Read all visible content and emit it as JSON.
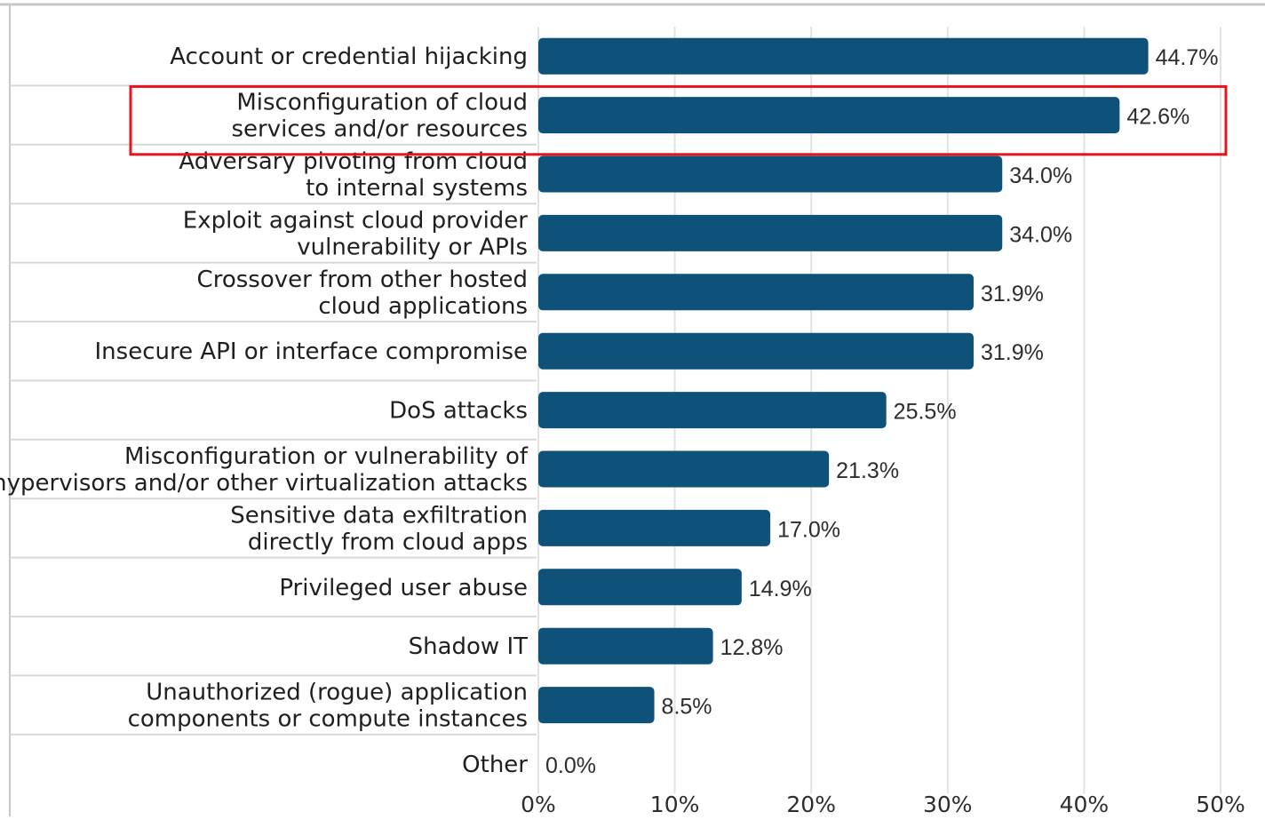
{
  "chart_data": {
    "type": "bar",
    "orientation": "horizontal",
    "categories": [
      [
        "Account or credential hijacking"
      ],
      [
        "Misconfiguration of cloud",
        "services and/or resources"
      ],
      [
        "Adversary pivoting from cloud",
        "to internal systems"
      ],
      [
        "Exploit against cloud provider",
        "vulnerability or APIs"
      ],
      [
        "Crossover from other hosted",
        "cloud applications"
      ],
      [
        "Insecure API or interface compromise"
      ],
      [
        "DoS attacks"
      ],
      [
        "Misconfiguration or vulnerability of",
        "hypervisors and/or other virtualization attacks"
      ],
      [
        "Sensitive data exfiltration",
        "directly from cloud apps"
      ],
      [
        "Privileged user abuse"
      ],
      [
        "Shadow IT"
      ],
      [
        "Unauthorized (rogue) application",
        "components or compute instances"
      ],
      [
        "Other"
      ]
    ],
    "values": [
      44.7,
      42.6,
      34.0,
      34.0,
      31.9,
      31.9,
      25.5,
      21.3,
      17.0,
      14.9,
      12.8,
      8.5,
      0.0
    ],
    "value_labels": [
      "44.7%",
      "42.6%",
      "34.0%",
      "34.0%",
      "31.9%",
      "31.9%",
      "25.5%",
      "21.3%",
      "17.0%",
      "14.9%",
      "12.8%",
      "8.5%",
      "0.0%"
    ],
    "xticks": [
      "0%",
      "10%",
      "20%",
      "30%",
      "40%",
      "50%"
    ],
    "xlim": [
      0,
      50
    ],
    "grid": true,
    "highlighted_category_index": 1,
    "colors": {
      "bar": "#0e527a",
      "highlight_box": "#e8141b",
      "grid": "#e2e2e2",
      "row_divider": "#d9d9d9"
    }
  }
}
